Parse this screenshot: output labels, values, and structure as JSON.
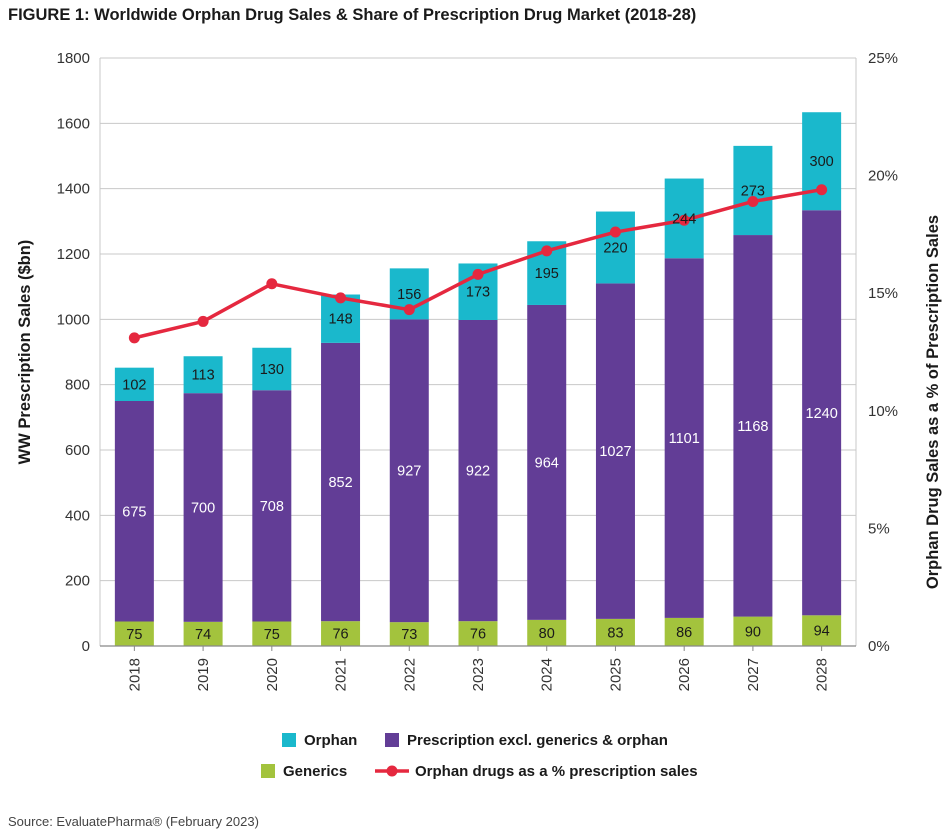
{
  "title": "FIGURE 1: Worldwide Orphan Drug Sales & Share of Prescription Drug Market (2018-28)",
  "source": "Source: EvaluatePharma® (February 2023)",
  "colors": {
    "orphan": "#1ab8cc",
    "prescription": "#623d96",
    "generics": "#a3c33d",
    "line": "#e5283f",
    "grid": "#c8c8c8"
  },
  "chart_data": {
    "type": "bar",
    "stacked": true,
    "categories": [
      "2018",
      "2019",
      "2020",
      "2021",
      "2022",
      "2023",
      "2024",
      "2025",
      "2026",
      "2027",
      "2028"
    ],
    "series": [
      {
        "name": "Generics",
        "values": [
          75,
          74,
          75,
          76,
          73,
          76,
          80,
          83,
          86,
          90,
          94
        ]
      },
      {
        "name": "Prescription excl. generics & orphan",
        "values": [
          675,
          700,
          708,
          852,
          927,
          922,
          964,
          1027,
          1101,
          1168,
          1240
        ]
      },
      {
        "name": "Orphan",
        "values": [
          102,
          113,
          130,
          148,
          156,
          173,
          195,
          220,
          244,
          273,
          300
        ]
      }
    ],
    "line_series": {
      "name": "Orphan drugs as a % prescription sales",
      "axis": "right",
      "values": [
        13.1,
        13.8,
        15.4,
        14.8,
        14.3,
        15.8,
        16.8,
        17.6,
        18.1,
        18.9,
        19.4
      ]
    },
    "ylabel": "WW Prescription Sales ($bn)",
    "ylabel_right": "Orphan Drug Sales as a % of Prescription Sales",
    "ylim": [
      0,
      1800
    ],
    "yticks": [
      "0",
      "200",
      "400",
      "600",
      "800",
      "1000",
      "1200",
      "1400",
      "1600",
      "1800"
    ],
    "ylim_right": [
      0,
      25
    ],
    "yticks_right": [
      "0%",
      "5%",
      "10%",
      "15%",
      "20%",
      "25%"
    ],
    "grid": true,
    "legend": {
      "placement": "bottom",
      "items": [
        {
          "label": "Orphan",
          "kind": "box",
          "series": "orphan"
        },
        {
          "label": "Prescription excl. generics & orphan",
          "kind": "box",
          "series": "prescription"
        },
        {
          "label": "Generics",
          "kind": "box",
          "series": "generics"
        },
        {
          "label": "Orphan drugs as a % prescription sales",
          "kind": "line",
          "series": "line"
        }
      ]
    }
  }
}
